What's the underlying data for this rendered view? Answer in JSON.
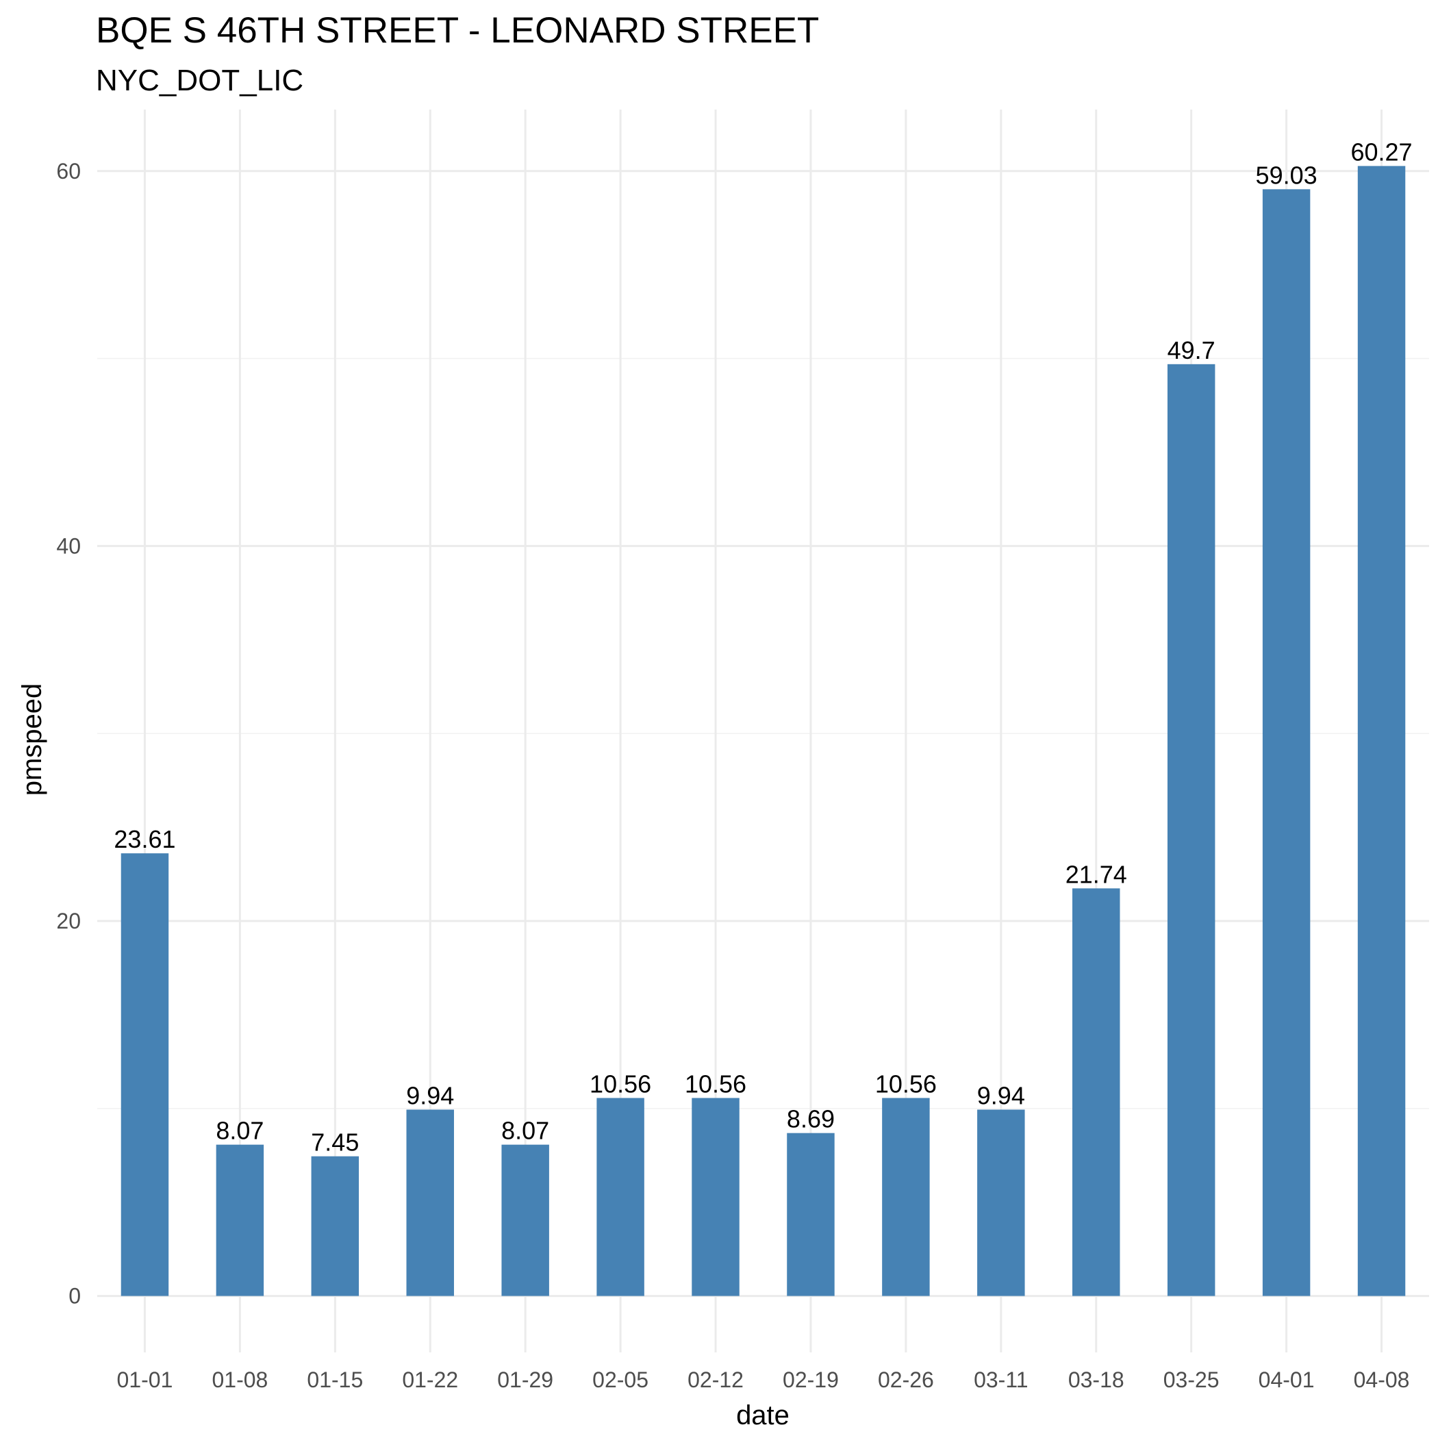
{
  "chart_data": {
    "type": "bar",
    "title": "BQE S 46TH STREET - LEONARD STREET",
    "subtitle": "NYC_DOT_LIC",
    "xlabel": "date",
    "ylabel": "pmspeed",
    "categories": [
      "01-01",
      "01-08",
      "01-15",
      "01-22",
      "01-29",
      "02-05",
      "02-12",
      "02-19",
      "02-26",
      "03-11",
      "03-18",
      "03-25",
      "04-01",
      "04-08"
    ],
    "values": [
      23.61,
      8.07,
      7.45,
      9.94,
      8.07,
      10.56,
      10.56,
      8.69,
      10.56,
      9.94,
      21.74,
      49.7,
      59.03,
      60.27
    ],
    "data_labels": [
      "23.61",
      "8.07",
      "7.45",
      "9.94",
      "8.07",
      "10.56",
      "10.56",
      "8.69",
      "10.56",
      "9.94",
      "21.74",
      "49.7",
      "59.03",
      "60.27"
    ],
    "ylim": [
      -3.01,
      63.28
    ],
    "yticks": [
      0,
      20,
      40,
      60
    ],
    "ytick_labels": [
      "0",
      "20",
      "40",
      "60"
    ],
    "grid": true,
    "legend": "none",
    "bar_color": "#4682b4"
  }
}
